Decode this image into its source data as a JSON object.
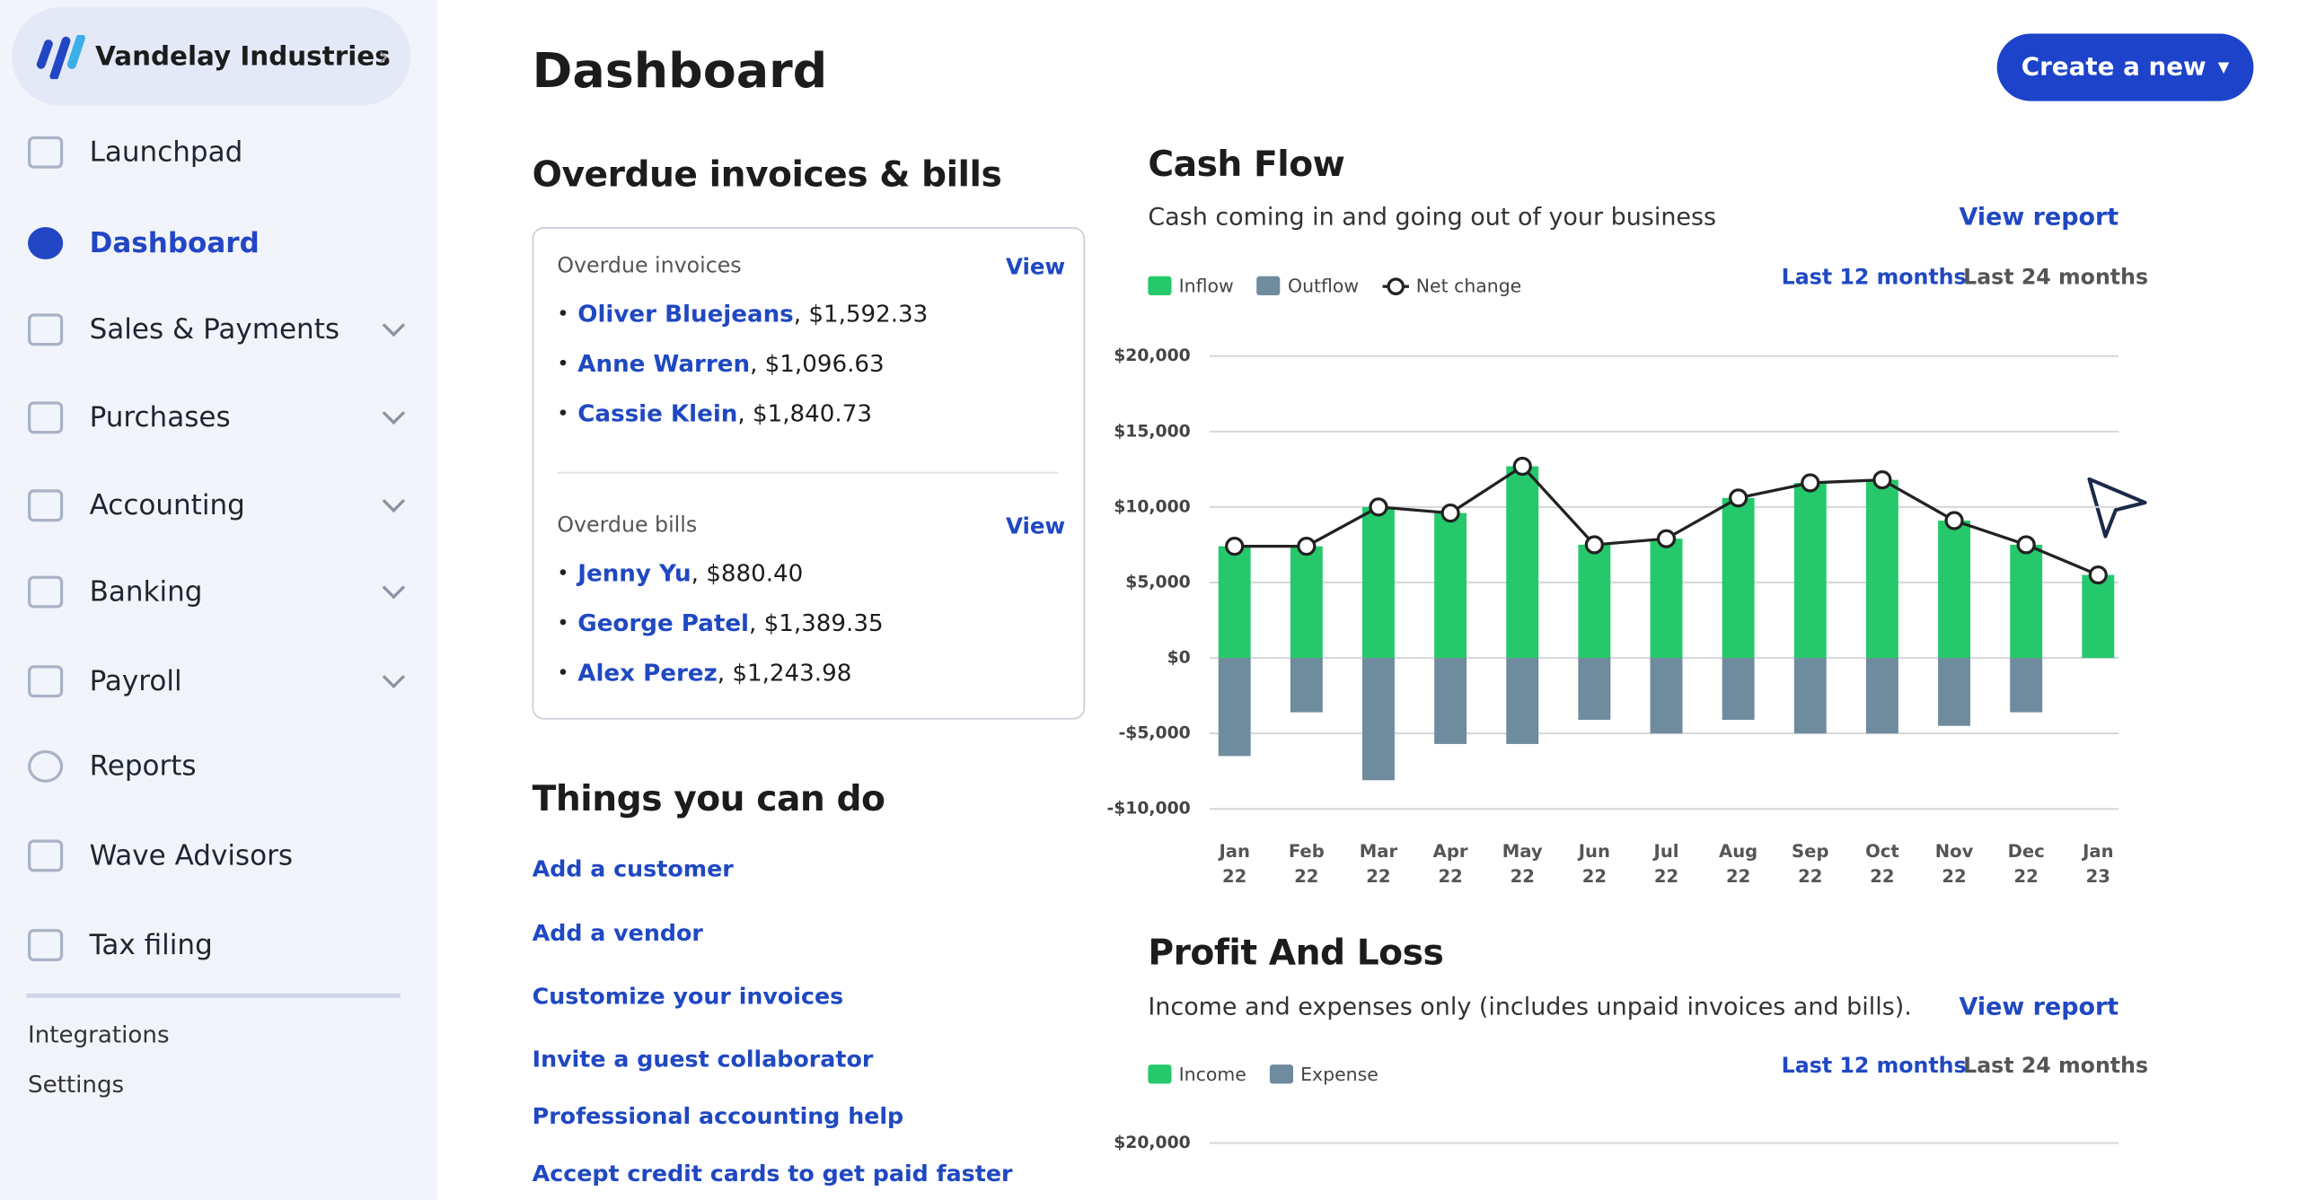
{
  "sidebar": {
    "business": "Vandelay Industries",
    "nav": [
      "Launchpad",
      "Dashboard",
      "Sales & Payments",
      "Purchases",
      "Accounting",
      "Banking",
      "Payroll",
      "Reports",
      "Wave Advisors",
      "Tax filing"
    ],
    "footer": [
      "Integrations",
      "Settings"
    ]
  },
  "header": {
    "title": "Dashboard",
    "create_button": "Create a new"
  },
  "overdue": {
    "title": "Overdue invoices & bills",
    "invoices": {
      "label": "Overdue invoices",
      "view": "View",
      "items": [
        {
          "name": "Oliver Bluejeans",
          "detail": ", $1,592.33"
        },
        {
          "name": "Anne Warren",
          "detail": ", $1,096.63"
        },
        {
          "name": "Cassie Klein",
          "detail": ", $1,840.73"
        }
      ]
    },
    "bills": {
      "label": "Overdue bills",
      "view": "View",
      "items": [
        {
          "name": "Jenny Yu",
          "detail": ", $880.40"
        },
        {
          "name": "George Patel",
          "detail": ", $1,389.35"
        },
        {
          "name": "Alex Perez",
          "detail": ", $1,243.98"
        }
      ]
    }
  },
  "things": {
    "title": "Things you can do",
    "links": [
      "Add a customer",
      "Add a vendor",
      "Customize your invoices",
      "Invite a guest collaborator",
      "Professional accounting help",
      "Accept credit cards to get paid faster"
    ]
  },
  "chart_data": {
    "type": "bar",
    "title": "Cash Flow",
    "subtitle": "Cash coming in and going out of your business",
    "view_report": "View report",
    "ranges": [
      "Last 12 months",
      "Last 24 months"
    ],
    "categories": [
      "Jan 22",
      "Feb 22",
      "Mar 22",
      "Apr 22",
      "May 22",
      "Jun 22",
      "Jul 22",
      "Aug 22",
      "Sep 22",
      "Oct 22",
      "Nov 22",
      "Dec 22",
      "Jan 23"
    ],
    "series": [
      {
        "name": "Inflow",
        "color": "#25c96b",
        "values": [
          7400,
          7400,
          10000,
          9600,
          12700,
          7500,
          7900,
          10600,
          11600,
          11800,
          9100,
          7500,
          5500
        ]
      },
      {
        "name": "Outflow",
        "color": "#6f8b9e",
        "values": [
          -6500,
          -3600,
          -8100,
          -5700,
          -5700,
          -4100,
          -5000,
          -4100,
          -5000,
          -5000,
          -4500,
          -3600,
          0
        ]
      },
      {
        "name": "Net change",
        "type": "line",
        "color": "#222222",
        "values": [
          7400,
          7400,
          10000,
          9600,
          12700,
          7500,
          7900,
          10600,
          11600,
          11800,
          9100,
          7500,
          5500
        ]
      }
    ],
    "ylim": [
      -10000,
      20000
    ],
    "yticks": [
      {
        "value": 20000,
        "label": "$20,000"
      },
      {
        "value": 15000,
        "label": "$15,000"
      },
      {
        "value": 10000,
        "label": "$10,000"
      },
      {
        "value": 5000,
        "label": "$5,000"
      },
      {
        "value": 0,
        "label": "$0"
      },
      {
        "value": -5000,
        "label": "-$5,000"
      },
      {
        "value": -10000,
        "label": "-$10,000"
      }
    ],
    "grid": true
  },
  "profit_loss": {
    "title": "Profit And Loss",
    "subtitle": "Income and expenses only (includes unpaid invoices and bills).",
    "view_report": "View report",
    "ranges": [
      "Last 12 months",
      "Last 24 months"
    ],
    "legend": [
      {
        "name": "Income",
        "color": "#25c96b"
      },
      {
        "name": "Expense",
        "color": "#6f8b9e"
      }
    ],
    "ytick_label": "$20,000"
  }
}
